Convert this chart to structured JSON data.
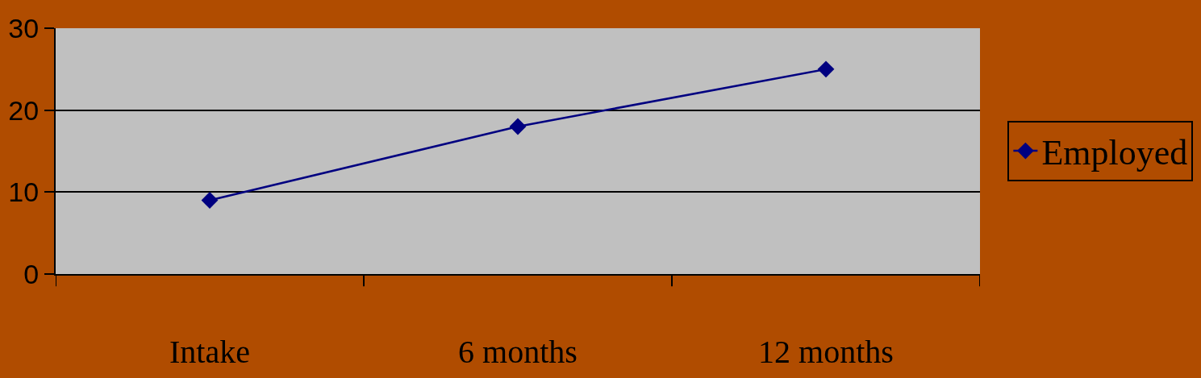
{
  "chart_data": {
    "type": "line",
    "categories": [
      "Intake",
      "6 months",
      "12 months"
    ],
    "series": [
      {
        "name": "Employed",
        "color": "#000080",
        "values": [
          9,
          18,
          25
        ]
      }
    ],
    "ylim": [
      0,
      30
    ],
    "yticks": [
      0,
      10,
      20,
      30
    ],
    "grid": "y",
    "legend": "right",
    "marker": "diamond",
    "line_style": "solid"
  }
}
